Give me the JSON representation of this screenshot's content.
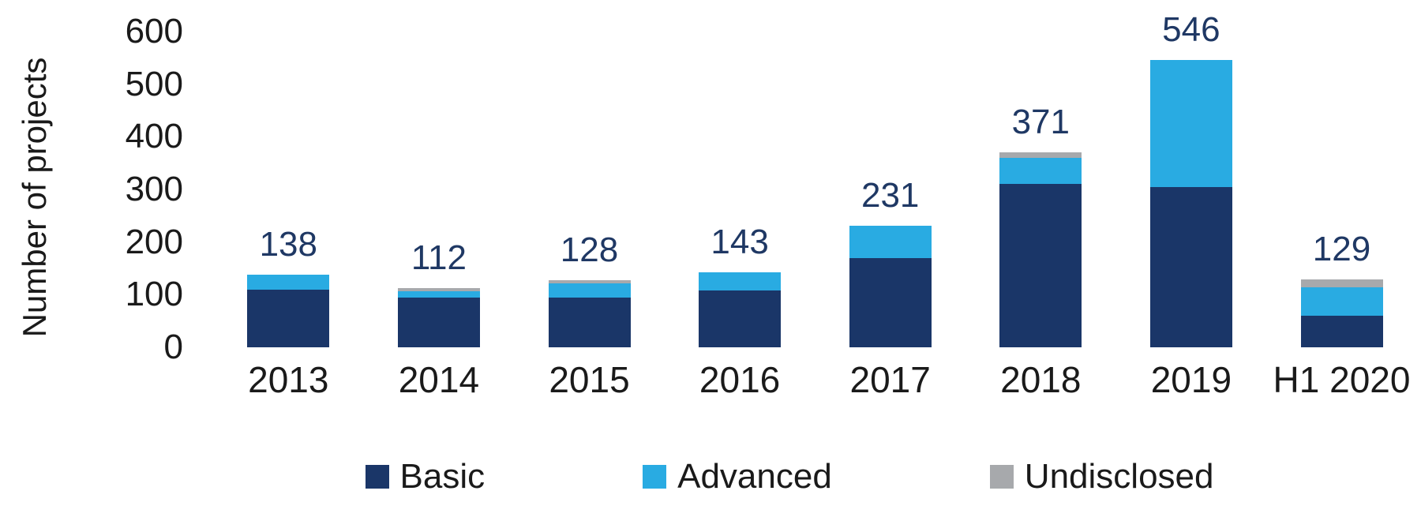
{
  "chart_data": {
    "type": "bar",
    "stacked": true,
    "title": "",
    "ylabel": "Number of projects",
    "xlabel": "",
    "ylim": [
      0,
      600
    ],
    "yticks": [
      600,
      500,
      400,
      300,
      200,
      100,
      0
    ],
    "categories": [
      "2013",
      "2014",
      "2015",
      "2016",
      "2017",
      "2018",
      "2019",
      "H1 2020"
    ],
    "series": [
      {
        "name": "Basic",
        "color": "#1A3668",
        "values": [
          110,
          95,
          95,
          108,
          170,
          310,
          305,
          60
        ]
      },
      {
        "name": "Advanced",
        "color": "#29ABE2",
        "values": [
          28,
          12,
          27,
          35,
          61,
          50,
          241,
          54
        ]
      },
      {
        "name": "Undisclosed",
        "color": "#A7A9AC",
        "values": [
          0,
          5,
          6,
          0,
          0,
          11,
          0,
          15
        ]
      }
    ],
    "totals": [
      138,
      112,
      128,
      143,
      231,
      371,
      546,
      129
    ],
    "legend": [
      "Basic",
      "Advanced",
      "Undisclosed"
    ],
    "legend_position": "bottom",
    "grid": false,
    "colors": {
      "data_label": "#1F3864",
      "axis_text": "#1A1A1A",
      "background": "#FFFFFF"
    }
  }
}
